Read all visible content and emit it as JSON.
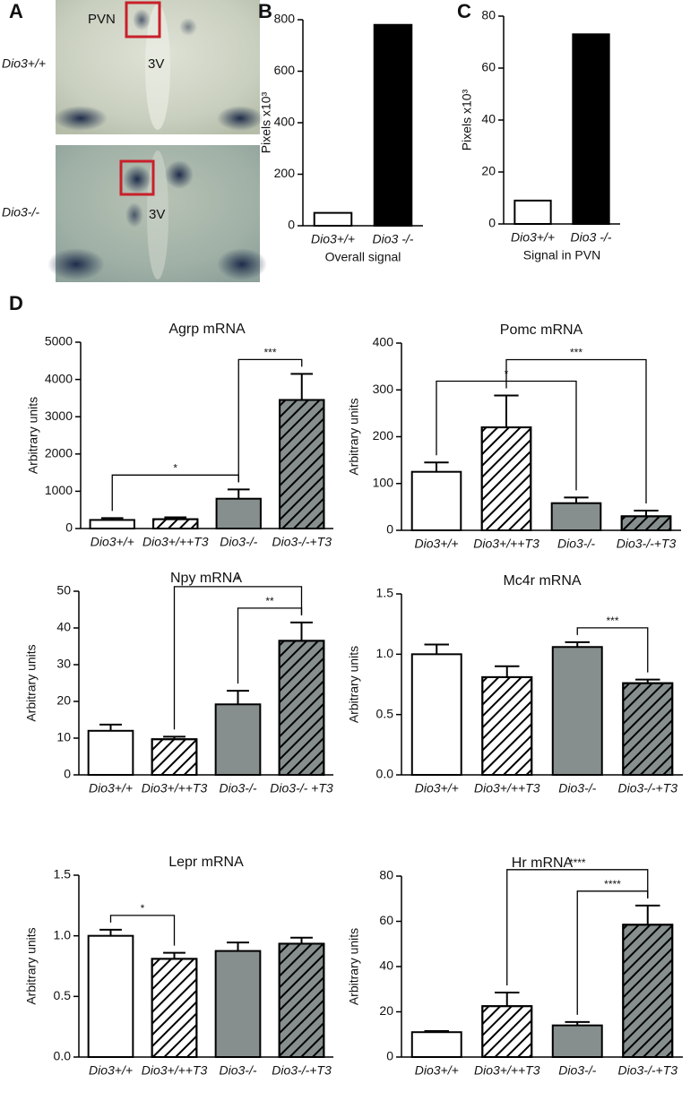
{
  "panel_letters": [
    "A",
    "B",
    "C",
    "D"
  ],
  "images": {
    "top": {
      "genotype": "Dio3+/+",
      "region_label": "PVN",
      "ventricle_label": "3V"
    },
    "bottom": {
      "genotype": "Dio3-/-",
      "ventricle_label": "3V"
    }
  },
  "chart_data": [
    {
      "type": "bar",
      "categories": [
        "Dio3+/+",
        "Dio3 -/-"
      ],
      "values": [
        50,
        780
      ],
      "colors": [
        "#ffffff",
        "#000000"
      ],
      "hatch": [
        false,
        false
      ],
      "y_label": "Pixels x10³",
      "x_label": "Overall signal",
      "ylim": [
        0,
        800
      ],
      "yticks": [
        0,
        200,
        400,
        600,
        800
      ]
    },
    {
      "type": "bar",
      "categories": [
        "Dio3+/+",
        "Dio3 -/-"
      ],
      "values": [
        9,
        73
      ],
      "colors": [
        "#ffffff",
        "#000000"
      ],
      "hatch": [
        false,
        false
      ],
      "y_label": "Pixels x10³",
      "x_label": "Signal in PVN",
      "ylim": [
        0,
        80
      ],
      "yticks": [
        0,
        20,
        40,
        60,
        80
      ]
    },
    {
      "type": "bar",
      "title": "Agrp mRNA",
      "y_label": "Arbitrary units",
      "categories": [
        "Dio3+/+",
        "Dio3+/++T3",
        "Dio3-/-",
        "Dio3-/-+T3"
      ],
      "values": [
        230,
        250,
        800,
        3450
      ],
      "errors": [
        50,
        50,
        250,
        700
      ],
      "colors": [
        "#ffffff",
        "#ffffff",
        "#868e8e",
        "#868e8e"
      ],
      "hatch": [
        false,
        true,
        false,
        true
      ],
      "ylim": [
        0,
        5000
      ],
      "yticks": [
        0,
        1000,
        2000,
        3000,
        4000,
        5000
      ],
      "significance": [
        {
          "from": 0,
          "to": 2,
          "label": "*"
        },
        {
          "from": 2,
          "to": 3,
          "label": "***"
        }
      ]
    },
    {
      "type": "bar",
      "title": "Pomc mRNA",
      "y_label": "Arbitrary units",
      "categories": [
        "Dio3+/+",
        "Dio3+/++T3",
        "Dio3-/-",
        "Dio3-/-+T3"
      ],
      "values": [
        125,
        220,
        58,
        30
      ],
      "errors": [
        20,
        68,
        12,
        12
      ],
      "colors": [
        "#ffffff",
        "#ffffff",
        "#868e8e",
        "#868e8e"
      ],
      "hatch": [
        false,
        true,
        false,
        true
      ],
      "ylim": [
        0,
        400
      ],
      "yticks": [
        0,
        100,
        200,
        300,
        400
      ],
      "significance": [
        {
          "from": 0,
          "to": 2,
          "label": "*"
        },
        {
          "from": 1,
          "to": 3,
          "label": "***"
        }
      ]
    },
    {
      "type": "bar",
      "title": "Npy mRNA",
      "y_label": "Arbitrary units",
      "categories": [
        "Dio3+/+",
        "Dio3+/++T3",
        "Dio3-/-",
        "Dio3-/- +T3"
      ],
      "values": [
        12,
        9.7,
        19.2,
        36.5
      ],
      "errors": [
        1.7,
        0.7,
        3.7,
        5
      ],
      "colors": [
        "#ffffff",
        "#ffffff",
        "#868e8e",
        "#868e8e"
      ],
      "hatch": [
        false,
        true,
        false,
        true
      ],
      "ylim": [
        0,
        50
      ],
      "yticks": [
        0,
        10,
        20,
        30,
        40,
        50
      ],
      "significance": [
        {
          "from": 2,
          "to": 3,
          "label": "**"
        },
        {
          "from": 1,
          "to": 3,
          "label": "*"
        }
      ]
    },
    {
      "type": "bar",
      "title": "Mc4r mRNA",
      "y_label": "Arbitrary units",
      "categories": [
        "Dio3+/+",
        "Dio3+/++T3",
        "Dio3-/-",
        "Dio3-/-+T3"
      ],
      "values": [
        1.0,
        0.81,
        1.06,
        0.76
      ],
      "errors": [
        0.08,
        0.09,
        0.04,
        0.03
      ],
      "colors": [
        "#ffffff",
        "#ffffff",
        "#868e8e",
        "#868e8e"
      ],
      "hatch": [
        false,
        true,
        false,
        true
      ],
      "ylim": [
        0,
        1.5
      ],
      "yticks": [
        {
          "value": 0,
          "label": "0.0"
        },
        0.5,
        {
          "value": 1,
          "label": "1.0"
        },
        1.5
      ],
      "significance": [
        {
          "from": 2,
          "to": 3,
          "label": "***"
        }
      ]
    },
    {
      "type": "bar",
      "title": "Lepr mRNA",
      "y_label": "Arbitrary units",
      "categories": [
        "Dio3+/+",
        "Dio3+/++T3",
        "Dio3-/-",
        "Dio3-/-+T3"
      ],
      "values": [
        1.0,
        0.81,
        0.875,
        0.935
      ],
      "errors": [
        0.05,
        0.05,
        0.07,
        0.05
      ],
      "colors": [
        "#ffffff",
        "#ffffff",
        "#868e8e",
        "#868e8e"
      ],
      "hatch": [
        false,
        true,
        false,
        true
      ],
      "ylim": [
        0,
        1.5
      ],
      "yticks": [
        {
          "value": 0,
          "label": "0.0"
        },
        0.5,
        {
          "value": 1,
          "label": "1.0"
        },
        1.5
      ],
      "significance": [
        {
          "from": 0,
          "to": 1,
          "label": "*"
        }
      ]
    },
    {
      "type": "bar",
      "title": "Hr mRNA",
      "y_label": "Arbitrary units",
      "categories": [
        "Dio3+/+",
        "Dio3+/++T3",
        "Dio3-/-",
        "Dio3-/-+T3"
      ],
      "values": [
        11,
        22.5,
        14,
        58.5
      ],
      "errors": [
        0.5,
        6,
        1.5,
        8.5
      ],
      "colors": [
        "#ffffff",
        "#ffffff",
        "#868e8e",
        "#868e8e"
      ],
      "hatch": [
        false,
        true,
        false,
        true
      ],
      "ylim": [
        0,
        80
      ],
      "yticks": [
        0,
        20,
        40,
        60,
        80
      ],
      "significance": [
        {
          "from": 2,
          "to": 3,
          "label": "****"
        },
        {
          "from": 1,
          "to": 3,
          "label": "****"
        }
      ]
    }
  ]
}
